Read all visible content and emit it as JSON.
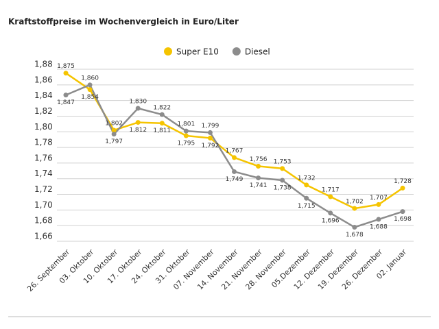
{
  "chart_data": {
    "type": "line",
    "title": "Kraftstoffpreise im Wochenvergleich in Euro/Liter",
    "categories": [
      "26. September",
      "03. Oktober",
      "10. Oktober",
      "17. Oktober",
      "24. Oktober",
      "31. Oktober",
      "07. November",
      "14. November",
      "21. November",
      "28. November",
      "05.Dezember",
      "12. Dezember",
      "19. Dezember",
      "26. Dezember",
      "02. Januar"
    ],
    "series": [
      {
        "name": "Super E10",
        "color": "#f5c400",
        "values": [
          1.875,
          1.854,
          1.802,
          1.812,
          1.811,
          1.795,
          1.792,
          1.767,
          1.756,
          1.753,
          1.732,
          1.717,
          1.702,
          1.707,
          1.728
        ],
        "value_labels": [
          "1,875",
          "1,854",
          "1,802",
          "1,812",
          "1,811",
          "1,795",
          "1,792",
          "1,767",
          "1,756",
          "1,753",
          "1,732",
          "1,717",
          "1,702",
          "1,707",
          "1,728"
        ]
      },
      {
        "name": "Diesel",
        "color": "#8c8c8c",
        "values": [
          1.847,
          1.86,
          1.797,
          1.83,
          1.822,
          1.801,
          1.799,
          1.749,
          1.741,
          1.738,
          1.715,
          1.696,
          1.678,
          1.688,
          1.698
        ],
        "value_labels": [
          "1,847",
          "1,860",
          "1,797",
          "1,830",
          "1,822",
          "1,801",
          "1,799",
          "1,749",
          "1,741",
          "1,738",
          "1,715",
          "1,696",
          "1,678",
          "1,688",
          "1,698"
        ]
      }
    ],
    "ylim": [
      1.66,
      1.88
    ],
    "yticks": [
      {
        "value": 1.66,
        "label": "1,66"
      },
      {
        "value": 1.68,
        "label": "1,68"
      },
      {
        "value": 1.7,
        "label": "1,70"
      },
      {
        "value": 1.72,
        "label": "1,72"
      },
      {
        "value": 1.74,
        "label": "1,74"
      },
      {
        "value": 1.76,
        "label": "1,76"
      },
      {
        "value": 1.78,
        "label": "1,78"
      },
      {
        "value": 1.8,
        "label": "1,80"
      },
      {
        "value": 1.82,
        "label": "1,82"
      },
      {
        "value": 1.84,
        "label": "1,84"
      },
      {
        "value": 1.86,
        "label": "1,86"
      },
      {
        "value": 1.88,
        "label": "1,88"
      }
    ],
    "grid": true
  }
}
